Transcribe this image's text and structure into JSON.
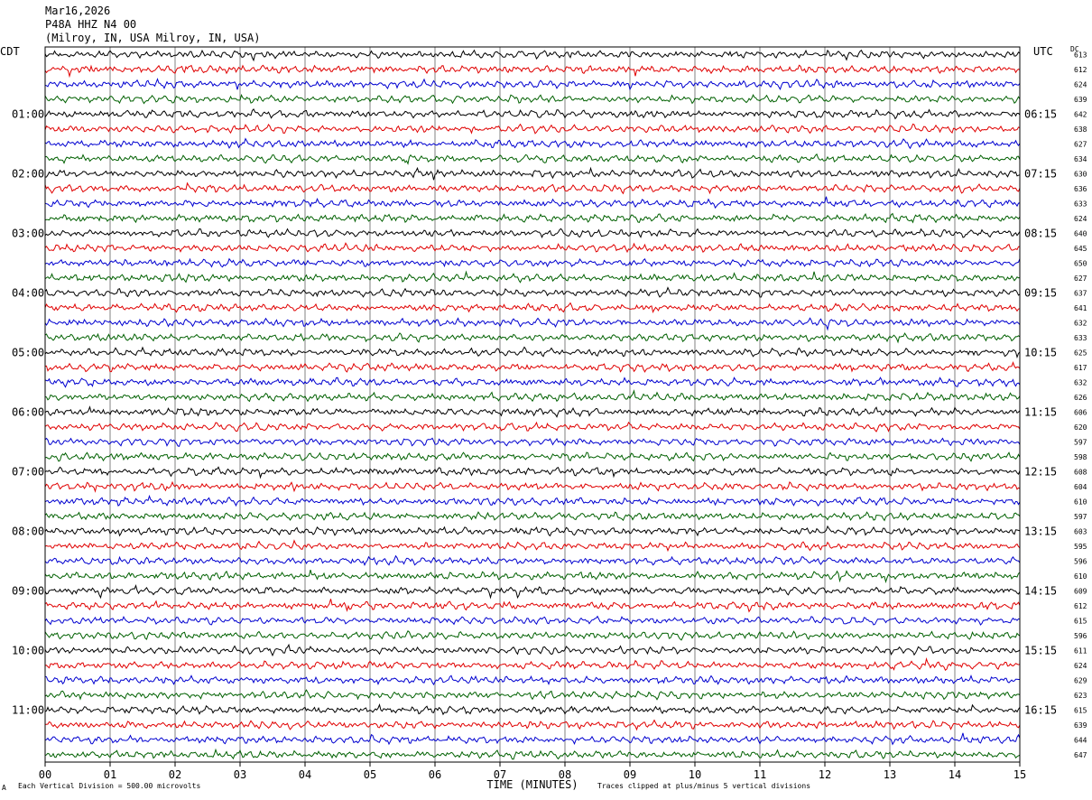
{
  "header": {
    "date": "Mar16,2026",
    "station": "P48A HHZ N4 00",
    "location": "(Milroy, IN, USA Milroy, IN, USA)"
  },
  "left_axis_label": "CDT",
  "right_axis_label": "UTC",
  "dc_label": "DC",
  "footer": {
    "scale_note": "Each Vertical Division =  500.00 microvolts",
    "clip_note": "Traces clipped at plus/minus 5 vertical divisions",
    "corner_mark": "A"
  },
  "colors": {
    "trace_cycle": [
      "#000000",
      "#e00000",
      "#0000d0",
      "#006000"
    ],
    "grid": "#808080"
  },
  "chart_data": {
    "type": "line",
    "title": "P48A HHZ N4 00",
    "xlabel": "TIME (MINUTES)",
    "ylabel": "",
    "x_ticks": [
      "00",
      "01",
      "02",
      "03",
      "04",
      "05",
      "06",
      "07",
      "08",
      "09",
      "10",
      "11",
      "12",
      "13",
      "14",
      "15"
    ],
    "xlim": [
      0,
      15
    ],
    "traces_per_hour": 4,
    "minutes_per_trace": 15,
    "left_hour_labels": [
      {
        "trace": 4,
        "label": "01:00"
      },
      {
        "trace": 8,
        "label": "02:00"
      },
      {
        "trace": 12,
        "label": "03:00"
      },
      {
        "trace": 16,
        "label": "04:00"
      },
      {
        "trace": 20,
        "label": "05:00"
      },
      {
        "trace": 24,
        "label": "06:00"
      },
      {
        "trace": 28,
        "label": "07:00"
      },
      {
        "trace": 32,
        "label": "08:00"
      },
      {
        "trace": 36,
        "label": "09:00"
      },
      {
        "trace": 40,
        "label": "10:00"
      },
      {
        "trace": 44,
        "label": "11:00"
      }
    ],
    "right_hour_labels": [
      {
        "trace": 4,
        "label": "06:15"
      },
      {
        "trace": 8,
        "label": "07:15"
      },
      {
        "trace": 12,
        "label": "08:15"
      },
      {
        "trace": 16,
        "label": "09:15"
      },
      {
        "trace": 20,
        "label": "10:15"
      },
      {
        "trace": 24,
        "label": "11:15"
      },
      {
        "trace": 28,
        "label": "12:15"
      },
      {
        "trace": 32,
        "label": "13:15"
      },
      {
        "trace": 36,
        "label": "14:15"
      },
      {
        "trace": 40,
        "label": "15:15"
      },
      {
        "trace": 44,
        "label": "16:15"
      }
    ],
    "dc_offsets": [
      "613",
      "612",
      "624",
      "639",
      "642",
      "638",
      "627",
      "634",
      "630",
      "636",
      "633",
      "624",
      "640",
      "645",
      "650",
      "627",
      "637",
      "641",
      "632",
      "633",
      "625",
      "617",
      "632",
      "626",
      "606",
      "620",
      "597",
      "598",
      "608",
      "604",
      "610",
      "597",
      "603",
      "595",
      "596",
      "610",
      "609",
      "612",
      "615",
      "596",
      "611",
      "624",
      "629",
      "623",
      "615",
      "639",
      "644",
      "647"
    ]
  }
}
